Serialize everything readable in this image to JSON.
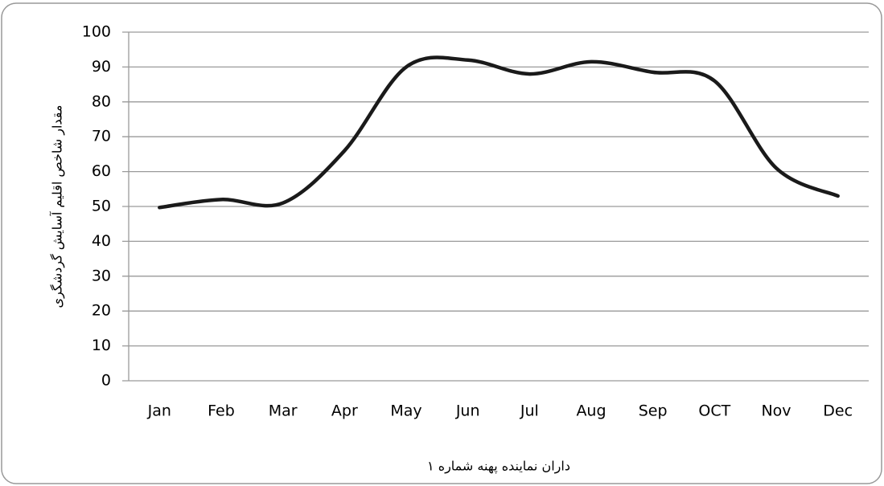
{
  "chart_data": {
    "type": "line",
    "x_label": "داران نماینده پهنه شماره ۱",
    "y_label": "مقدار شاخص اقلیم آسایش گردشگری",
    "categories": [
      "Jan",
      "Feb",
      "Mar",
      "Apr",
      "May",
      "Jun",
      "Jul",
      "Aug",
      "Sep",
      "OCT",
      "Nov",
      "Dec"
    ],
    "series": [
      {
        "color": "#1a1a1a",
        "values": [
          49.7,
          52,
          51,
          66,
          90,
          92,
          88,
          91.5,
          88.5,
          86,
          61,
          53
        ]
      }
    ],
    "ylim": [
      0,
      100
    ],
    "yticks": [
      0,
      10,
      20,
      30,
      40,
      50,
      60,
      70,
      80,
      90,
      100
    ],
    "grid": true,
    "smooth": true
  }
}
